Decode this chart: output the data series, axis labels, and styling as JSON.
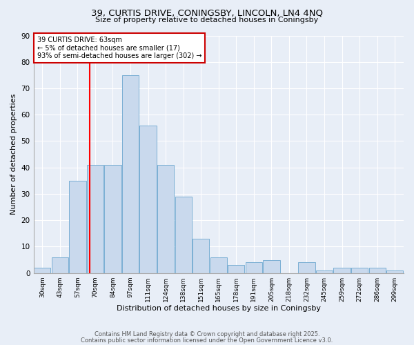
{
  "title1": "39, CURTIS DRIVE, CONINGSBY, LINCOLN, LN4 4NQ",
  "title2": "Size of property relative to detached houses in Coningsby",
  "xlabel": "Distribution of detached houses by size in Coningsby",
  "ylabel": "Number of detached properties",
  "categories": [
    "30sqm",
    "43sqm",
    "57sqm",
    "70sqm",
    "84sqm",
    "97sqm",
    "111sqm",
    "124sqm",
    "138sqm",
    "151sqm",
    "165sqm",
    "178sqm",
    "191sqm",
    "205sqm",
    "218sqm",
    "232sqm",
    "245sqm",
    "259sqm",
    "272sqm",
    "286sqm",
    "299sqm"
  ],
  "values": [
    2,
    6,
    35,
    41,
    41,
    75,
    56,
    41,
    29,
    13,
    6,
    3,
    4,
    5,
    0,
    4,
    1,
    2,
    2,
    2,
    1
  ],
  "bar_color": "#c9d9ed",
  "bar_edge_color": "#7bafd4",
  "red_line_x": 2.68,
  "annotation_text": "39 CURTIS DRIVE: 63sqm\n← 5% of detached houses are smaller (17)\n93% of semi-detached houses are larger (302) →",
  "annotation_box_color": "#ffffff",
  "annotation_box_edge": "#cc0000",
  "footnote1": "Contains HM Land Registry data © Crown copyright and database right 2025.",
  "footnote2": "Contains public sector information licensed under the Open Government Licence v3.0.",
  "bg_color": "#e8eef7",
  "grid_color": "#ffffff",
  "ylim": [
    0,
    90
  ],
  "yticks": [
    0,
    10,
    20,
    30,
    40,
    50,
    60,
    70,
    80,
    90
  ]
}
